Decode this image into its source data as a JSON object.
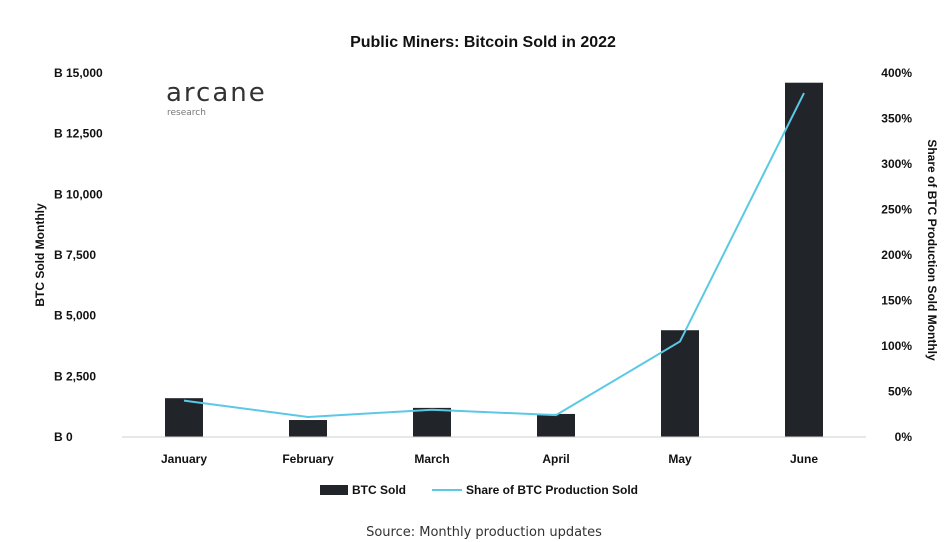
{
  "chart_data": {
    "type": "bar",
    "title": "Public Miners: Bitcoin Sold in 2022",
    "categories": [
      "January",
      "February",
      "March",
      "April",
      "May",
      "June"
    ],
    "series": [
      {
        "name": "BTC Sold",
        "type": "bar",
        "axis": "left",
        "color": "#212529",
        "values": [
          1600,
          700,
          1200,
          950,
          4400,
          14600
        ]
      },
      {
        "name": "Share of BTC Production Sold",
        "type": "line",
        "axis": "right",
        "color": "#5bc8e6",
        "values": [
          40,
          22,
          30,
          24,
          105,
          378
        ]
      }
    ],
    "y_left": {
      "label": "BTC Sold Monthly",
      "range": [
        0,
        15000
      ],
      "ticks": [
        0,
        2500,
        5000,
        7500,
        10000,
        12500,
        15000
      ],
      "tick_labels": [
        "B 0",
        "B 2,500",
        "B 5,000",
        "B 7,500",
        "B 10,000",
        "B 12,500",
        "B 15,000"
      ]
    },
    "y_right": {
      "label": "Share of BTC Production Sold Monthly",
      "range": [
        0,
        400
      ],
      "ticks": [
        0,
        50,
        100,
        150,
        200,
        250,
        300,
        350,
        400
      ],
      "tick_labels": [
        "0%",
        "50%",
        "100%",
        "150%",
        "200%",
        "250%",
        "300%",
        "350%",
        "400%"
      ]
    },
    "grid": false,
    "legend_position": "bottom"
  },
  "logo": {
    "name": "arcane",
    "sub": "research"
  },
  "source": "Source: Monthly production updates"
}
